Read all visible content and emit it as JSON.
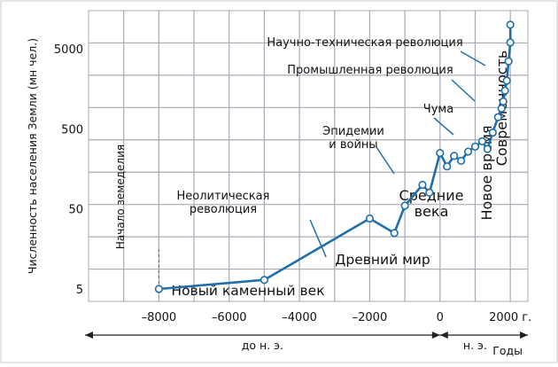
{
  "chart_data": {
    "type": "line",
    "ylabel": "Численность населения Земли (мн чел.)",
    "xlabel": "Годы",
    "y_scale": "log",
    "ylim": [
      3.5,
      15000
    ],
    "xlim": [
      -10000,
      2500
    ],
    "y_ticks": [
      {
        "value": 5,
        "label": "5"
      },
      {
        "value": 50,
        "label": "50"
      },
      {
        "value": 500,
        "label": "500"
      },
      {
        "value": 5000,
        "label": "5000"
      }
    ],
    "x_ticks": [
      {
        "value": -8000,
        "label": "–8000"
      },
      {
        "value": -6000,
        "label": "–6000"
      },
      {
        "value": -4000,
        "label": "–4000"
      },
      {
        "value": -2000,
        "label": "–2000"
      },
      {
        "value": 0,
        "label": "0"
      },
      {
        "value": 2000,
        "label": "2000 г."
      }
    ],
    "era_bc": "до н. э.",
    "era_ad": "н. э.",
    "grid": true,
    "colors": {
      "line": "#1f6fa8",
      "grid": "#a9a9b4",
      "text": "#111111"
    },
    "series": [
      {
        "points": [
          {
            "x": -8000,
            "y": 5
          },
          {
            "x": -5000,
            "y": 6.5
          },
          {
            "x": -2000,
            "y": 38
          },
          {
            "x": -1300,
            "y": 25
          },
          {
            "x": -1000,
            "y": 55
          },
          {
            "x": -500,
            "y": 100
          },
          {
            "x": -300,
            "y": 80
          },
          {
            "x": 0,
            "y": 250
          },
          {
            "x": 200,
            "y": 170
          },
          {
            "x": 400,
            "y": 230
          },
          {
            "x": 600,
            "y": 200
          },
          {
            "x": 800,
            "y": 260
          },
          {
            "x": 1000,
            "y": 300
          },
          {
            "x": 1200,
            "y": 350
          },
          {
            "x": 1350,
            "y": 280
          },
          {
            "x": 1500,
            "y": 450
          },
          {
            "x": 1650,
            "y": 700
          },
          {
            "x": 1750,
            "y": 900
          },
          {
            "x": 1800,
            "y": 1100
          },
          {
            "x": 1850,
            "y": 1500
          },
          {
            "x": 1900,
            "y": 2000
          },
          {
            "x": 1950,
            "y": 3500
          },
          {
            "x": 2000,
            "y": 6000
          },
          {
            "x": 2000,
            "y": 10000
          }
        ]
      }
    ],
    "annotations": [
      {
        "text": "Начало земеделия",
        "x": -8000,
        "y": 7
      },
      {
        "text": "Неолитическая революция",
        "x": -4200,
        "y": 45
      },
      {
        "text": "Эпидемии и войны",
        "x": -800,
        "y": 200
      },
      {
        "text": "Чума",
        "x": 1200,
        "y": 450
      },
      {
        "text": "Промышленная революция",
        "x": 700,
        "y": 3000
      },
      {
        "text": "Научно-техническая революция",
        "x": 700,
        "y": 6000
      },
      {
        "text": "Новый каменный век",
        "x": -5000,
        "y": 4.5
      },
      {
        "text": "Древний мир",
        "x": -2000,
        "y": 18
      },
      {
        "text": "Средние века",
        "x": 600,
        "y": 60
      },
      {
        "text": "Новое время",
        "x": 1700,
        "y": 200
      },
      {
        "text": "Современность",
        "x": 2300,
        "y": 600
      }
    ]
  }
}
